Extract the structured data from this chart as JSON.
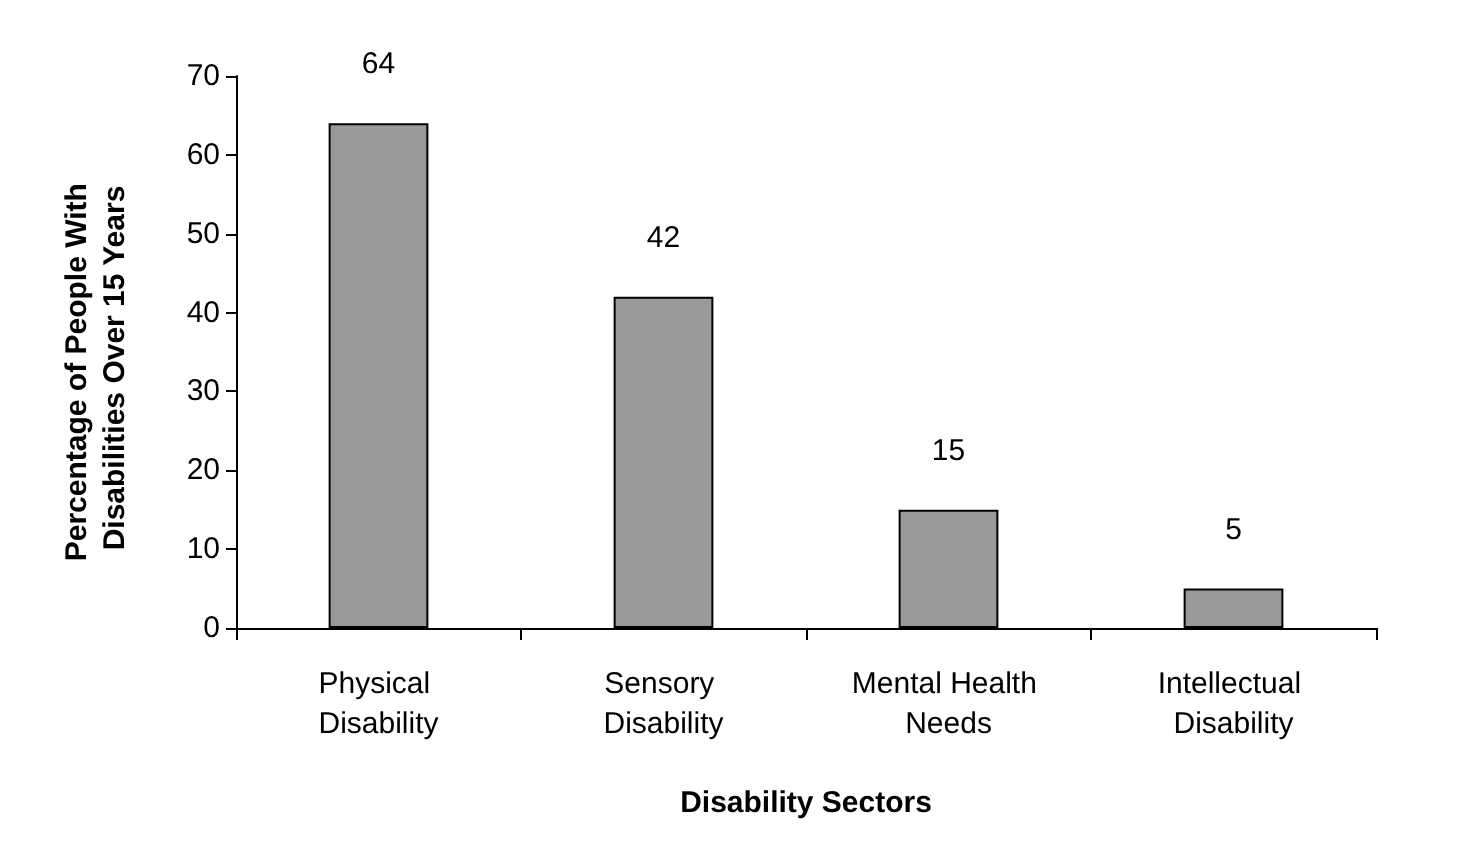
{
  "chart_data": {
    "type": "bar",
    "xlabel": "Disability Sectors",
    "ylabel": "Percentage of People With Disabilities Over 15 Years",
    "categories": [
      "Physical Disability",
      "Sensory Disability",
      "Mental Health Needs",
      "Intellectual Disability"
    ],
    "values": [
      64,
      42,
      15,
      5
    ],
    "color": "#999999",
    "data_labels": true,
    "ylim": [
      0,
      70
    ],
    "yticks": [
      0,
      10,
      20,
      30,
      40,
      50,
      60,
      70
    ],
    "grid": false
  }
}
